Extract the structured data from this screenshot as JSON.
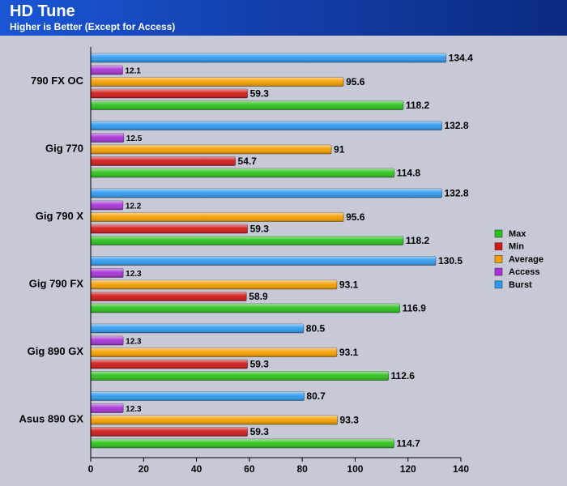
{
  "chart_data": {
    "type": "bar",
    "orientation": "horizontal",
    "title": "HD Tune",
    "subtitle": "Higher is Better (Except for Access)",
    "xlim": [
      0,
      140
    ],
    "xticks": [
      0,
      20,
      40,
      60,
      80,
      100,
      120,
      140
    ],
    "grid": false,
    "legend_position": "right",
    "categories": [
      "790 FX OC",
      "Gig 770",
      "Gig 790 X",
      "Gig 790 FX",
      "Gig 890 GX",
      "Asus 890 GX"
    ],
    "series": [
      {
        "name": "Burst",
        "color": "#2f9bf0",
        "values": [
          134.4,
          132.8,
          132.8,
          130.5,
          80.5,
          80.7
        ]
      },
      {
        "name": "Access",
        "color": "#a833d6",
        "values": [
          12.1,
          12.5,
          12.2,
          12.3,
          12.3,
          12.3
        ]
      },
      {
        "name": "Average",
        "color": "#f5a000",
        "values": [
          95.6,
          91,
          95.6,
          93.1,
          93.1,
          93.3
        ]
      },
      {
        "name": "Min",
        "color": "#d11a1a",
        "values": [
          59.3,
          54.7,
          59.3,
          58.9,
          59.3,
          59.3
        ]
      },
      {
        "name": "Max",
        "color": "#2cc21c",
        "values": [
          118.2,
          114.8,
          118.2,
          116.9,
          112.6,
          114.7
        ]
      }
    ],
    "legend_order": [
      "Max",
      "Min",
      "Average",
      "Access",
      "Burst"
    ]
  }
}
